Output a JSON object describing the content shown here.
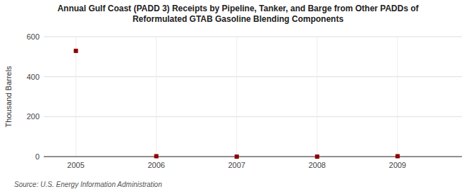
{
  "chart_data": {
    "type": "scatter",
    "title": "Annual Gulf Coast (PADD 3) Receipts by Pipeline, Tanker, and Barge from Other PADDs of\nReformulated GTAB Gasoline Blending Components",
    "ylabel": "Thousand Barrels",
    "source": "Source: U.S. Energy Information Administration",
    "x": [
      2005,
      2006,
      2007,
      2008,
      2009
    ],
    "values": [
      529,
      2,
      0,
      0,
      2
    ],
    "color": "#8b0000",
    "marker": "square",
    "xlim": [
      2004.6,
      2009.8
    ],
    "xticks": [
      2005,
      2006,
      2007,
      2008,
      2009
    ],
    "ylim": [
      0,
      600
    ],
    "yticks": [
      0,
      200,
      400,
      600
    ],
    "grid": true
  }
}
